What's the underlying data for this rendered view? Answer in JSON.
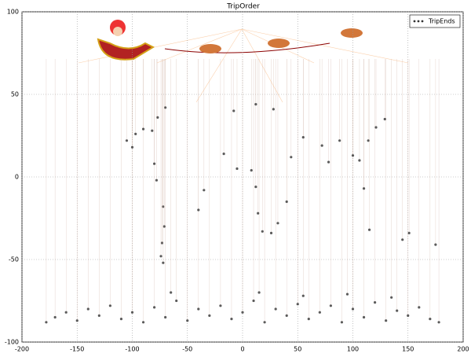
{
  "chart_data": {
    "type": "scatter",
    "title": "TripOrder",
    "x": [
      -178,
      -170,
      -160,
      -150,
      -140,
      -130,
      -120,
      -110,
      -100,
      -90,
      -80,
      -70,
      -60,
      -50,
      -40,
      -30,
      -20,
      -10,
      0,
      10,
      20,
      30,
      40,
      50,
      60,
      70,
      80,
      90,
      100,
      110,
      120,
      130,
      140,
      150,
      160,
      170,
      178,
      -65,
      15,
      55,
      95,
      135,
      -82,
      -77,
      -70,
      -90,
      -97,
      -105,
      -100,
      -80,
      -78,
      -72,
      -71,
      -73,
      -74,
      -72,
      -40,
      -35,
      -17,
      -5,
      8,
      12,
      14,
      18,
      26,
      32,
      40,
      44,
      55,
      72,
      78,
      88,
      100,
      106,
      114,
      121,
      129,
      110,
      115,
      151,
      145,
      175,
      -8,
      12,
      28
    ],
    "series": [
      {
        "name": "TripEnds",
        "color": "#333333",
        "values": [
          -88,
          -85,
          -82,
          -87,
          -80,
          -84,
          -78,
          -86,
          -82,
          -88,
          -79,
          -85,
          -75,
          -87,
          -80,
          -84,
          -78,
          -86,
          -82,
          -75,
          -88,
          -80,
          -84,
          -77,
          -86,
          -82,
          -78,
          -88,
          -80,
          -85,
          -76,
          -87,
          -81,
          -84,
          -79,
          -86,
          -88,
          -70,
          -70,
          -72,
          -71,
          -73,
          28,
          36,
          42,
          29,
          26,
          22,
          18,
          8,
          -2,
          -18,
          -30,
          -40,
          -48,
          -52,
          -20,
          -8,
          14,
          5,
          4,
          -6,
          -22,
          -33,
          -34,
          -28,
          -15,
          12,
          24,
          19,
          9,
          22,
          13,
          10,
          22,
          30,
          35,
          -7,
          -32,
          -34,
          -38,
          -41,
          40,
          44,
          41
        ]
      }
    ],
    "xlim": [
      -200,
      200
    ],
    "xticks": [
      -200,
      -150,
      -100,
      -50,
      0,
      50,
      100,
      150,
      200
    ],
    "ylim": [
      -100,
      100
    ],
    "yticks": [
      -100,
      -50,
      0,
      50,
      100
    ],
    "grid": true,
    "legend": "upper right"
  }
}
